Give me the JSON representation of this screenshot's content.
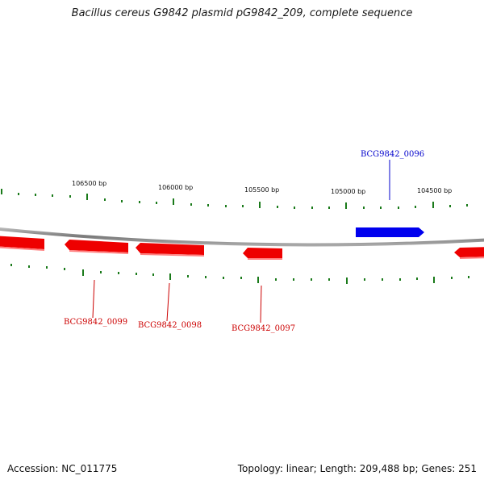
{
  "title": "Bacillus cereus G9842 plasmid pG9842_209, complete sequence",
  "footer": {
    "accession": "Accession: NC_011775",
    "summary": "Topology: linear; Length: 209,488 bp; Genes: 251"
  },
  "scale": {
    "tick_labels": [
      "106500 bp",
      "106000 bp",
      "105500 bp",
      "105000 bp",
      "104500 bp"
    ]
  },
  "genes": [
    {
      "label": "BCG9842_0096",
      "strand": "forward",
      "color": "#0000cc"
    },
    {
      "label": "BCG9842_0097",
      "strand": "reverse",
      "color": "#cc0000"
    },
    {
      "label": "BCG9842_0098",
      "strand": "reverse",
      "color": "#cc0000"
    },
    {
      "label": "BCG9842_0099",
      "strand": "reverse",
      "color": "#cc0000"
    }
  ],
  "colors": {
    "forward_gene": "#0000ee",
    "reverse_gene": "#ee0000",
    "ticks": "#1a7a1a",
    "backbone": "#8c8c8c"
  }
}
